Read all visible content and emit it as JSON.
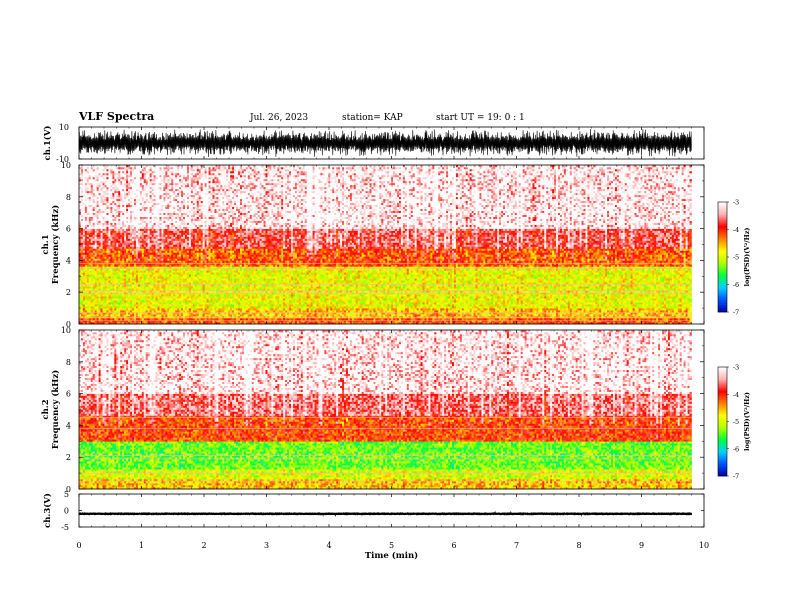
{
  "header": {
    "title": "VLF Spectra",
    "date": "Jul. 26, 2023",
    "station": "station= KAP",
    "start": "start UT = 19: 0 : 1"
  },
  "chart_data": [
    {
      "type": "line",
      "panel": "ch1-waveform",
      "ylabel": "ch.1(V)",
      "yticks": [
        "10",
        "-10"
      ],
      "ylim": [
        -10,
        10
      ],
      "xlim": [
        0,
        10
      ],
      "data_extent_min": 9.8,
      "description_level": "dense waveform nearly filling the range (about ±9 V peaks, mostly ±6 V)"
    },
    {
      "type": "heatmap",
      "panel": "ch1-spectrogram",
      "ylabel": "ch.1\nFrequency (kHz)",
      "ylabel_line1": "ch.1",
      "ylabel_line2": "Frequency (kHz)",
      "xlim": [
        0,
        10
      ],
      "ylim": [
        0,
        10
      ],
      "yticks": [
        "0",
        "2",
        "4",
        "6",
        "8",
        "10"
      ],
      "bands": [
        {
          "from_khz": 0.0,
          "to_khz": 0.4,
          "log_psd": -4.2
        },
        {
          "from_khz": 0.4,
          "to_khz": 1.0,
          "log_psd": -4.6
        },
        {
          "from_khz": 1.0,
          "to_khz": 3.6,
          "log_psd": -4.9
        },
        {
          "from_khz": 3.6,
          "to_khz": 4.8,
          "log_psd": -4.2
        },
        {
          "from_khz": 4.8,
          "to_khz": 6.0,
          "log_psd": -3.7
        },
        {
          "from_khz": 6.0,
          "to_khz": 10.0,
          "log_psd": -3.3
        }
      ],
      "lines_khz": [
        0.2,
        0.4,
        0.7,
        1.9,
        2.1,
        2.5,
        3.5,
        3.8
      ]
    },
    {
      "type": "heatmap",
      "panel": "ch2-spectrogram",
      "ylabel_line1": "ch.2",
      "ylabel_line2": "Frequency (kHz)",
      "xlim": [
        0,
        10
      ],
      "ylim": [
        0,
        10
      ],
      "yticks": [
        "0",
        "2",
        "4",
        "6",
        "8",
        "10"
      ],
      "bands": [
        {
          "from_khz": 0.0,
          "to_khz": 0.6,
          "log_psd": -4.6
        },
        {
          "from_khz": 0.6,
          "to_khz": 1.2,
          "log_psd": -5.0
        },
        {
          "from_khz": 1.2,
          "to_khz": 3.0,
          "log_psd": -5.4
        },
        {
          "from_khz": 3.0,
          "to_khz": 4.6,
          "log_psd": -4.1
        },
        {
          "from_khz": 4.6,
          "to_khz": 6.0,
          "log_psd": -3.6
        },
        {
          "from_khz": 6.0,
          "to_khz": 10.0,
          "log_psd": -3.3
        }
      ],
      "lines_khz": [
        0.5,
        1.0,
        1.9,
        2.1,
        3.8,
        4.5
      ]
    },
    {
      "type": "line",
      "panel": "ch3-waveform",
      "ylabel": "ch.3(V)",
      "yticks": [
        "5",
        "0",
        "-5"
      ],
      "ylim": [
        -5,
        5
      ],
      "xlim": [
        0,
        10
      ],
      "data_extent_min": 9.8,
      "description_level": "flat band near -1 V with small amplitude (about ±0.4 V)"
    }
  ],
  "colorbar": {
    "label": "log(PSD)(V²/Hz)",
    "ticks": [
      "-3",
      "-4",
      "-5",
      "-6",
      "-7"
    ],
    "range": [
      -7,
      -3
    ],
    "colors": [
      "#0000a0",
      "#0050ff",
      "#00d0ff",
      "#00ff40",
      "#b0ff00",
      "#ffff00",
      "#ff8000",
      "#ff0000",
      "#ffb0b0",
      "#ffffff"
    ]
  },
  "xaxis": {
    "label": "Time (min)",
    "ticks": [
      "0",
      "1",
      "2",
      "3",
      "4",
      "5",
      "6",
      "7",
      "8",
      "9",
      "10"
    ]
  }
}
